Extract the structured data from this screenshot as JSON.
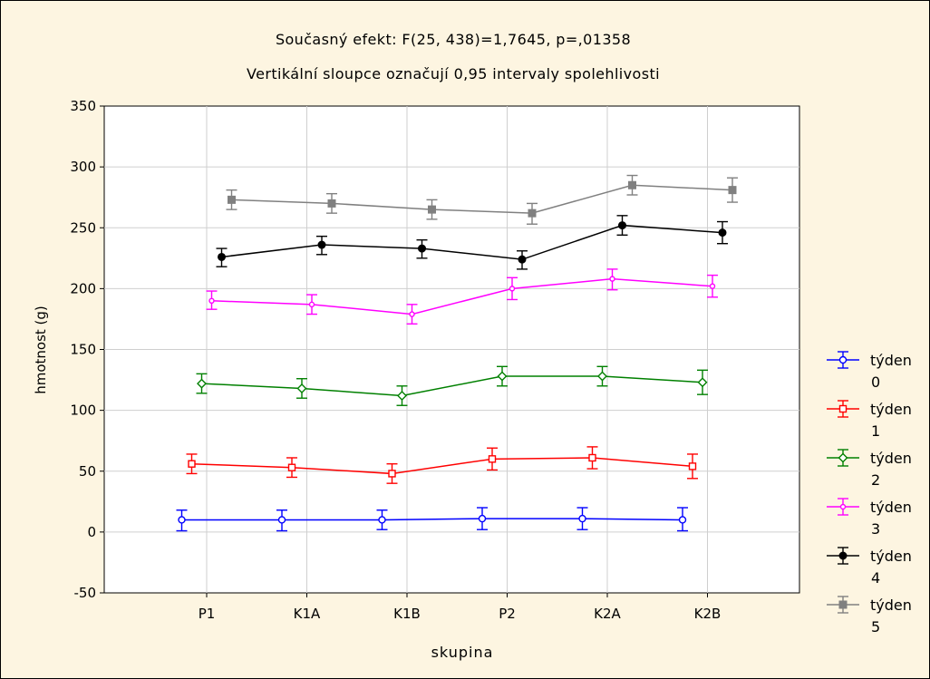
{
  "chart_data": {
    "type": "line",
    "title": "Současný efekt: F(25, 438)=1,7645, p=,01358",
    "subtitle": "Vertikální sloupce označují 0,95 intervaly spolehlivosti",
    "xlabel": "skupina",
    "ylabel": "hmotnost (g)",
    "ylim": [
      -50,
      350
    ],
    "yticks": [
      "-50",
      "0",
      "50",
      "100",
      "150",
      "200",
      "250",
      "300",
      "350"
    ],
    "categories": [
      "P1",
      "K1A",
      "K1B",
      "P2",
      "K2A",
      "K2B"
    ],
    "grid": true,
    "legend_position": "right",
    "series": [
      {
        "name": "týden 0",
        "legend_line1": "týden",
        "legend_line2": "0",
        "color": "#0000ff",
        "marker": "circle",
        "values": [
          10,
          10,
          10,
          11,
          11,
          10
        ],
        "ci": [
          [
            1,
            18
          ],
          [
            1,
            18
          ],
          [
            2,
            18
          ],
          [
            2,
            20
          ],
          [
            2,
            20
          ],
          [
            1,
            20
          ]
        ]
      },
      {
        "name": "týden 1",
        "legend_line1": "týden",
        "legend_line2": "1",
        "color": "#ff0000",
        "marker": "square",
        "values": [
          56,
          53,
          48,
          60,
          61,
          54
        ],
        "ci": [
          [
            48,
            64
          ],
          [
            45,
            61
          ],
          [
            40,
            56
          ],
          [
            51,
            69
          ],
          [
            52,
            70
          ],
          [
            44,
            64
          ]
        ]
      },
      {
        "name": "týden 2",
        "legend_line1": "týden",
        "legend_line2": "2",
        "color": "#008000",
        "marker": "diamond",
        "values": [
          122,
          118,
          112,
          128,
          128,
          123
        ],
        "ci": [
          [
            114,
            130
          ],
          [
            110,
            126
          ],
          [
            104,
            120
          ],
          [
            120,
            136
          ],
          [
            120,
            136
          ],
          [
            113,
            133
          ]
        ]
      },
      {
        "name": "týden 3",
        "legend_line1": "týden",
        "legend_line2": "3",
        "color": "#ff00ff",
        "marker": "circle-small",
        "values": [
          190,
          187,
          179,
          200,
          208,
          202
        ],
        "ci": [
          [
            183,
            198
          ],
          [
            179,
            195
          ],
          [
            171,
            187
          ],
          [
            191,
            209
          ],
          [
            199,
            216
          ],
          [
            193,
            211
          ]
        ]
      },
      {
        "name": "týden 4",
        "legend_line1": "týden",
        "legend_line2": "4",
        "color": "#000000",
        "marker": "filled-circle",
        "values": [
          226,
          236,
          233,
          224,
          252,
          246
        ],
        "ci": [
          [
            218,
            233
          ],
          [
            228,
            243
          ],
          [
            225,
            240
          ],
          [
            216,
            231
          ],
          [
            244,
            260
          ],
          [
            237,
            255
          ]
        ]
      },
      {
        "name": "týden 5",
        "legend_line1": "týden",
        "legend_line2": "5",
        "color": "#808080",
        "marker": "filled-square",
        "values": [
          273,
          270,
          265,
          262,
          285,
          281
        ],
        "ci": [
          [
            265,
            281
          ],
          [
            262,
            278
          ],
          [
            257,
            273
          ],
          [
            253,
            270
          ],
          [
            277,
            293
          ],
          [
            271,
            291
          ]
        ]
      }
    ]
  }
}
